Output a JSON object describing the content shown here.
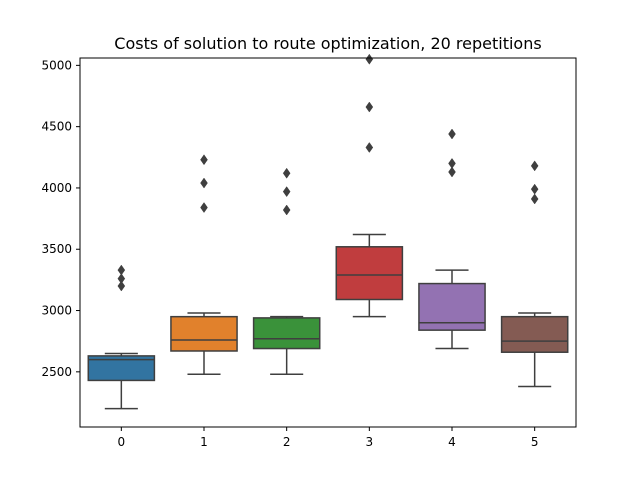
{
  "chart_data": {
    "type": "box",
    "title": "Costs of solution to route optimization, 20 repetitions",
    "xlabel": "",
    "ylabel": "",
    "categories": [
      "0",
      "1",
      "2",
      "3",
      "4",
      "5"
    ],
    "ylim": [
      2050,
      5060
    ],
    "yticks": [
      2500,
      3000,
      3500,
      4000,
      4500,
      5000
    ],
    "grid": false,
    "boxes": [
      {
        "category": "0",
        "color": "#3274a1",
        "whisker_low": 2200,
        "q1": 2430,
        "median": 2600,
        "q3": 2630,
        "whisker_high": 2650,
        "outliers": [
          3330,
          3260,
          3200
        ]
      },
      {
        "category": "1",
        "color": "#e1812c",
        "whisker_low": 2480,
        "q1": 2670,
        "median": 2760,
        "q3": 2950,
        "whisker_high": 2980,
        "outliers": [
          4230,
          4040,
          3840
        ]
      },
      {
        "category": "2",
        "color": "#3a923a",
        "whisker_low": 2480,
        "q1": 2690,
        "median": 2770,
        "q3": 2940,
        "whisker_high": 2950,
        "outliers": [
          4120,
          3970,
          3820
        ]
      },
      {
        "category": "3",
        "color": "#c03d3e",
        "whisker_low": 2950,
        "q1": 3090,
        "median": 3290,
        "q3": 3520,
        "whisker_high": 3620,
        "outliers": [
          5050,
          4660,
          4330
        ]
      },
      {
        "category": "4",
        "color": "#9372b2",
        "whisker_low": 2690,
        "q1": 2840,
        "median": 2900,
        "q3": 3220,
        "whisker_high": 3330,
        "outliers": [
          4440,
          4200,
          4130
        ]
      },
      {
        "category": "5",
        "color": "#845b53",
        "whisker_low": 2380,
        "q1": 2660,
        "median": 2750,
        "q3": 2950,
        "whisker_high": 2980,
        "outliers": [
          4180,
          3990,
          3910
        ]
      }
    ]
  }
}
